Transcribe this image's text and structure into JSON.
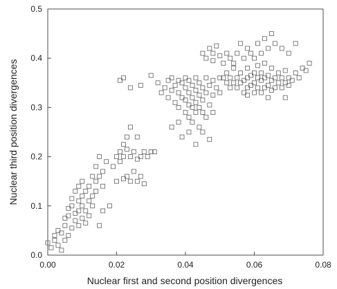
{
  "chart_data": {
    "type": "scatter",
    "title": "",
    "xlabel": "Nuclear first and second position divergences",
    "ylabel": "Nuclear third position divergences",
    "xlim": [
      0.0,
      0.08
    ],
    "ylim": [
      0.0,
      0.5
    ],
    "x_ticks": [
      0.0,
      0.02,
      0.04,
      0.06,
      0.08
    ],
    "y_ticks": [
      0.0,
      0.1,
      0.2,
      0.3,
      0.4,
      0.5
    ],
    "x_tick_labels": [
      "0.00",
      "0.02",
      "0.04",
      "0.06",
      "0.08"
    ],
    "y_tick_labels": [
      "0.0",
      "0.1",
      "0.2",
      "0.3",
      "0.4",
      "0.5"
    ],
    "grid": false,
    "marker": "open-square",
    "colors": {
      "marker": "#6f6f6f",
      "axis": "#444444",
      "text": "#222222"
    },
    "series": [
      {
        "points": [
          [
            0.0,
            0.025
          ],
          [
            0.001,
            0.015
          ],
          [
            0.002,
            0.03
          ],
          [
            0.002,
            0.04
          ],
          [
            0.003,
            0.02
          ],
          [
            0.003,
            0.05
          ],
          [
            0.004,
            0.01
          ],
          [
            0.004,
            0.045
          ],
          [
            0.005,
            0.03
          ],
          [
            0.005,
            0.06
          ],
          [
            0.005,
            0.075
          ],
          [
            0.006,
            0.04
          ],
          [
            0.006,
            0.08
          ],
          [
            0.006,
            0.095
          ],
          [
            0.007,
            0.055
          ],
          [
            0.007,
            0.1
          ],
          [
            0.007,
            0.115
          ],
          [
            0.008,
            0.07
          ],
          [
            0.008,
            0.085
          ],
          [
            0.008,
            0.13
          ],
          [
            0.009,
            0.06
          ],
          [
            0.009,
            0.09
          ],
          [
            0.009,
            0.11
          ],
          [
            0.009,
            0.14
          ],
          [
            0.01,
            0.075
          ],
          [
            0.01,
            0.1
          ],
          [
            0.01,
            0.12
          ],
          [
            0.01,
            0.15
          ],
          [
            0.011,
            0.065
          ],
          [
            0.011,
            0.09
          ],
          [
            0.011,
            0.13
          ],
          [
            0.012,
            0.08
          ],
          [
            0.012,
            0.11
          ],
          [
            0.012,
            0.14
          ],
          [
            0.013,
            0.1
          ],
          [
            0.013,
            0.12
          ],
          [
            0.013,
            0.16
          ],
          [
            0.014,
            0.13
          ],
          [
            0.014,
            0.15
          ],
          [
            0.014,
            0.18
          ],
          [
            0.015,
            0.06
          ],
          [
            0.015,
            0.16
          ],
          [
            0.015,
            0.2
          ],
          [
            0.016,
            0.09
          ],
          [
            0.016,
            0.14
          ],
          [
            0.016,
            0.17
          ],
          [
            0.017,
            0.19
          ],
          [
            0.018,
            0.1
          ],
          [
            0.019,
            0.18
          ],
          [
            0.02,
            0.15
          ],
          [
            0.02,
            0.2
          ],
          [
            0.021,
            0.19
          ],
          [
            0.021,
            0.21
          ],
          [
            0.022,
            0.155
          ],
          [
            0.022,
            0.2
          ],
          [
            0.022,
            0.225
          ],
          [
            0.023,
            0.16
          ],
          [
            0.023,
            0.215
          ],
          [
            0.023,
            0.24
          ],
          [
            0.024,
            0.15
          ],
          [
            0.024,
            0.2
          ],
          [
            0.024,
            0.26
          ],
          [
            0.025,
            0.17
          ],
          [
            0.025,
            0.21
          ],
          [
            0.026,
            0.15
          ],
          [
            0.026,
            0.195
          ],
          [
            0.026,
            0.24
          ],
          [
            0.027,
            0.16
          ],
          [
            0.027,
            0.2
          ],
          [
            0.028,
            0.145
          ],
          [
            0.028,
            0.21
          ],
          [
            0.029,
            0.2
          ],
          [
            0.03,
            0.21
          ],
          [
            0.031,
            0.21
          ],
          [
            0.021,
            0.355
          ],
          [
            0.022,
            0.36
          ],
          [
            0.024,
            0.34
          ],
          [
            0.027,
            0.345
          ],
          [
            0.03,
            0.365
          ],
          [
            0.032,
            0.35
          ],
          [
            0.033,
            0.33
          ],
          [
            0.034,
            0.34
          ],
          [
            0.035,
            0.32
          ],
          [
            0.035,
            0.355
          ],
          [
            0.036,
            0.335
          ],
          [
            0.036,
            0.36
          ],
          [
            0.037,
            0.31
          ],
          [
            0.037,
            0.345
          ],
          [
            0.038,
            0.3
          ],
          [
            0.038,
            0.33
          ],
          [
            0.038,
            0.355
          ],
          [
            0.039,
            0.32
          ],
          [
            0.039,
            0.35
          ],
          [
            0.04,
            0.29
          ],
          [
            0.04,
            0.315
          ],
          [
            0.04,
            0.34
          ],
          [
            0.04,
            0.36
          ],
          [
            0.041,
            0.28
          ],
          [
            0.041,
            0.305
          ],
          [
            0.041,
            0.33
          ],
          [
            0.041,
            0.355
          ],
          [
            0.042,
            0.27
          ],
          [
            0.042,
            0.3
          ],
          [
            0.042,
            0.32
          ],
          [
            0.042,
            0.345
          ],
          [
            0.043,
            0.29
          ],
          [
            0.043,
            0.31
          ],
          [
            0.043,
            0.335
          ],
          [
            0.043,
            0.36
          ],
          [
            0.044,
            0.26
          ],
          [
            0.044,
            0.3
          ],
          [
            0.044,
            0.325
          ],
          [
            0.044,
            0.35
          ],
          [
            0.045,
            0.25
          ],
          [
            0.045,
            0.29
          ],
          [
            0.045,
            0.315
          ],
          [
            0.045,
            0.34
          ],
          [
            0.046,
            0.28
          ],
          [
            0.046,
            0.33
          ],
          [
            0.046,
            0.36
          ],
          [
            0.047,
            0.235
          ],
          [
            0.047,
            0.305
          ],
          [
            0.047,
            0.345
          ],
          [
            0.048,
            0.29
          ],
          [
            0.048,
            0.325
          ],
          [
            0.048,
            0.355
          ],
          [
            0.049,
            0.34
          ],
          [
            0.05,
            0.33
          ],
          [
            0.05,
            0.36
          ],
          [
            0.041,
            0.25
          ],
          [
            0.043,
            0.225
          ],
          [
            0.036,
            0.26
          ],
          [
            0.038,
            0.27
          ],
          [
            0.039,
            0.24
          ],
          [
            0.045,
            0.41
          ],
          [
            0.046,
            0.4
          ],
          [
            0.047,
            0.42
          ],
          [
            0.048,
            0.395
          ],
          [
            0.048,
            0.41
          ],
          [
            0.049,
            0.425
          ],
          [
            0.05,
            0.405
          ],
          [
            0.051,
            0.39
          ],
          [
            0.052,
            0.41
          ],
          [
            0.053,
            0.4
          ],
          [
            0.054,
            0.39
          ],
          [
            0.055,
            0.41
          ],
          [
            0.056,
            0.43
          ],
          [
            0.057,
            0.4
          ],
          [
            0.058,
            0.42
          ],
          [
            0.059,
            0.41
          ],
          [
            0.06,
            0.4
          ],
          [
            0.061,
            0.43
          ],
          [
            0.062,
            0.41
          ],
          [
            0.063,
            0.44
          ],
          [
            0.064,
            0.42
          ],
          [
            0.065,
            0.45
          ],
          [
            0.066,
            0.43
          ],
          [
            0.068,
            0.42
          ],
          [
            0.07,
            0.41
          ],
          [
            0.072,
            0.43
          ],
          [
            0.051,
            0.36
          ],
          [
            0.052,
            0.35
          ],
          [
            0.052,
            0.37
          ],
          [
            0.053,
            0.34
          ],
          [
            0.053,
            0.36
          ],
          [
            0.054,
            0.35
          ],
          [
            0.054,
            0.38
          ],
          [
            0.055,
            0.34
          ],
          [
            0.055,
            0.36
          ],
          [
            0.056,
            0.35
          ],
          [
            0.056,
            0.37
          ],
          [
            0.057,
            0.33
          ],
          [
            0.057,
            0.355
          ],
          [
            0.058,
            0.34
          ],
          [
            0.058,
            0.36
          ],
          [
            0.058,
            0.38
          ],
          [
            0.059,
            0.345
          ],
          [
            0.059,
            0.365
          ],
          [
            0.06,
            0.33
          ],
          [
            0.06,
            0.35
          ],
          [
            0.06,
            0.37
          ],
          [
            0.061,
            0.34
          ],
          [
            0.061,
            0.36
          ],
          [
            0.061,
            0.385
          ],
          [
            0.062,
            0.33
          ],
          [
            0.062,
            0.355
          ],
          [
            0.062,
            0.37
          ],
          [
            0.063,
            0.34
          ],
          [
            0.063,
            0.36
          ],
          [
            0.063,
            0.39
          ],
          [
            0.064,
            0.345
          ],
          [
            0.064,
            0.365
          ],
          [
            0.065,
            0.335
          ],
          [
            0.065,
            0.355
          ],
          [
            0.065,
            0.38
          ],
          [
            0.066,
            0.34
          ],
          [
            0.066,
            0.36
          ],
          [
            0.067,
            0.35
          ],
          [
            0.067,
            0.37
          ],
          [
            0.068,
            0.34
          ],
          [
            0.068,
            0.36
          ],
          [
            0.069,
            0.35
          ],
          [
            0.069,
            0.375
          ],
          [
            0.07,
            0.345
          ],
          [
            0.07,
            0.36
          ],
          [
            0.071,
            0.355
          ],
          [
            0.072,
            0.37
          ],
          [
            0.073,
            0.36
          ],
          [
            0.074,
            0.38
          ],
          [
            0.075,
            0.375
          ],
          [
            0.076,
            0.39
          ],
          [
            0.069,
            0.32
          ],
          [
            0.064,
            0.32
          ],
          [
            0.058,
            0.325
          ]
        ]
      }
    ]
  }
}
